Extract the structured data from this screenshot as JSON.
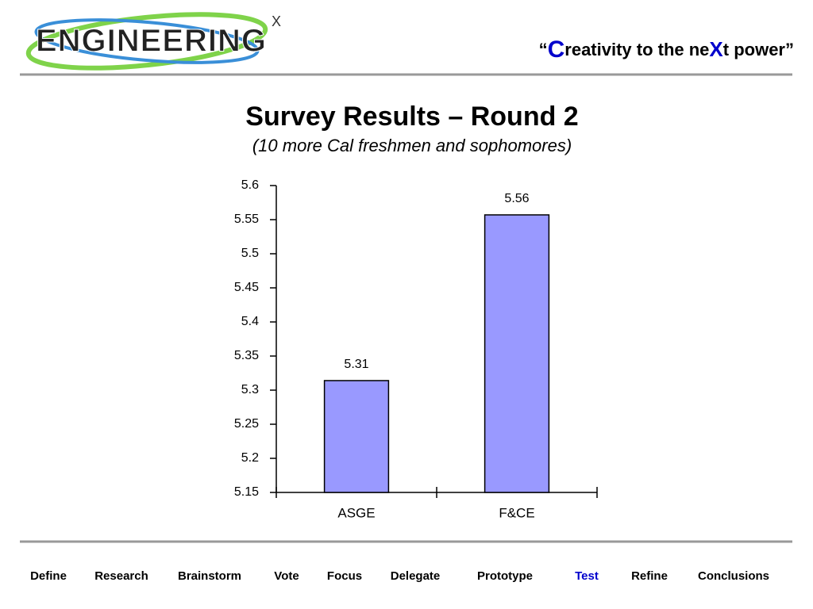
{
  "header": {
    "logo": "ENGINEERING",
    "logo_sup": "X",
    "tagline": [
      "“",
      "C",
      "reativity to the ne",
      "X",
      "t power”"
    ]
  },
  "chart_data": {
    "type": "bar",
    "title": "Survey Results – Round 2",
    "subtitle": "(10 more Cal freshmen and sophomores)",
    "categories": [
      "ASGE",
      "F&CE"
    ],
    "values": [
      5.314,
      5.557
    ],
    "value_labels": [
      "5.31",
      "5.56"
    ],
    "color": "#9999ff",
    "ylim": [
      5.15,
      5.6
    ],
    "yticks": [
      5.15,
      5.2,
      5.25,
      5.3,
      5.35,
      5.4,
      5.45,
      5.5,
      5.55,
      5.6
    ],
    "grid": false
  },
  "nav": [
    {
      "label": "Define",
      "color": "#000000"
    },
    {
      "label": "Research",
      "color": "#000000"
    },
    {
      "label": "Brainstorm",
      "color": "#000000"
    },
    {
      "label": "Vote",
      "color": "#000000"
    },
    {
      "label": "Focus",
      "color": "#000000"
    },
    {
      "label": "Delegate",
      "color": "#000000"
    },
    {
      "label": "Prototype",
      "color": "#000000"
    },
    {
      "label": "Test",
      "color": "#0000cc"
    },
    {
      "label": "Refine",
      "color": "#000000"
    },
    {
      "label": "Conclusions",
      "color": "#000000"
    }
  ]
}
